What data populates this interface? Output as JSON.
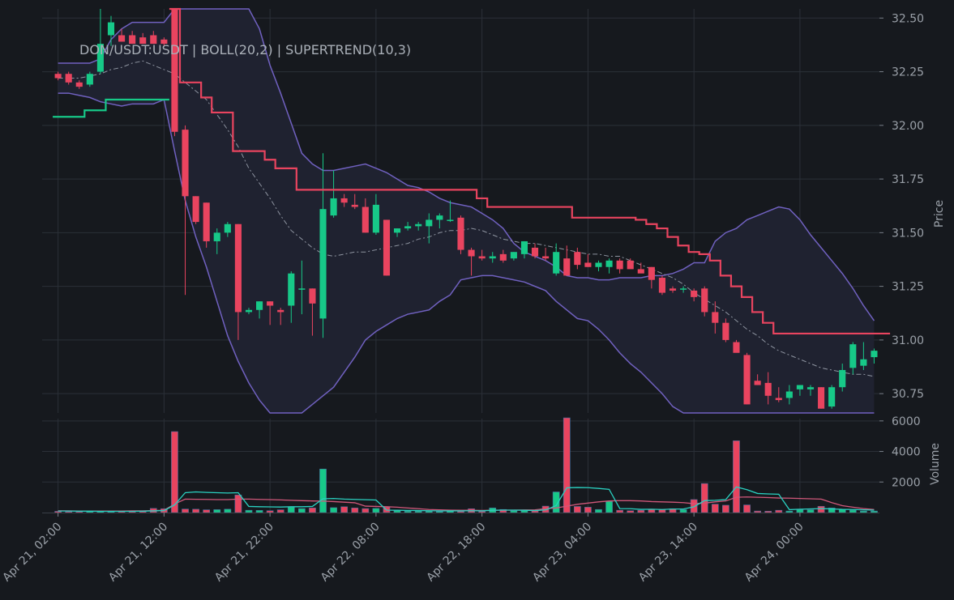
{
  "chart_data": {
    "type": "candlestick",
    "title": "DON/USDT:USDT | BOLL(20,2) | SUPERTREND(10,3)",
    "ylabel": "Price",
    "volume_label": "Volume",
    "price_ylim": [
      30.66,
      32.52
    ],
    "price_ticks": [
      "30.75",
      "31.00",
      "31.25",
      "31.50",
      "31.75",
      "32.00",
      "32.25",
      "32.50"
    ],
    "volume_ylim": [
      0,
      6150
    ],
    "volume_ticks": [
      "2000",
      "4000",
      "6000"
    ],
    "x_range": [
      -1.5,
      77.5
    ],
    "x_ticks": [
      {
        "index": 0,
        "label": "Apr 21, 02:00"
      },
      {
        "index": 10,
        "label": "Apr 21, 12:00"
      },
      {
        "index": 20,
        "label": "Apr 21, 22:00"
      },
      {
        "index": 30,
        "label": "Apr 22, 08:00"
      },
      {
        "index": 40,
        "label": "Apr 22, 18:00"
      },
      {
        "index": 50,
        "label": "Apr 23, 04:00"
      },
      {
        "index": 60,
        "label": "Apr 23, 14:00"
      },
      {
        "index": 70,
        "label": "Apr 24, 00:00"
      }
    ],
    "candles": [
      [
        32.24,
        32.25,
        32.21,
        32.22
      ],
      [
        32.24,
        32.25,
        32.19,
        32.2
      ],
      [
        32.2,
        32.21,
        32.17,
        32.18
      ],
      [
        32.19,
        32.25,
        32.18,
        32.24
      ],
      [
        32.25,
        32.55,
        32.24,
        32.38
      ],
      [
        32.42,
        32.51,
        32.37,
        32.48
      ],
      [
        32.42,
        32.45,
        32.39,
        32.39
      ],
      [
        32.42,
        32.44,
        32.38,
        32.38
      ],
      [
        32.41,
        32.43,
        32.38,
        32.38
      ],
      [
        32.42,
        32.44,
        32.38,
        32.38
      ],
      [
        32.4,
        32.41,
        32.37,
        32.38
      ],
      [
        32.55,
        32.56,
        31.95,
        31.97
      ],
      [
        31.98,
        32.0,
        31.21,
        31.67
      ],
      [
        31.67,
        31.67,
        31.54,
        31.55
      ],
      [
        31.64,
        31.64,
        31.43,
        31.46
      ],
      [
        31.46,
        31.52,
        31.4,
        31.5
      ],
      [
        31.5,
        31.55,
        31.48,
        31.54
      ],
      [
        31.54,
        31.54,
        31.0,
        31.13
      ],
      [
        31.13,
        31.15,
        31.12,
        31.14
      ],
      [
        31.14,
        31.18,
        31.1,
        31.18
      ],
      [
        31.18,
        31.18,
        31.07,
        31.16
      ],
      [
        31.14,
        31.15,
        31.07,
        31.13
      ],
      [
        31.16,
        31.32,
        31.08,
        31.31
      ],
      [
        31.24,
        31.37,
        31.12,
        31.24
      ],
      [
        31.24,
        31.24,
        31.02,
        31.17
      ],
      [
        31.1,
        31.87,
        31.01,
        31.61
      ],
      [
        31.58,
        31.79,
        31.57,
        31.66
      ],
      [
        31.66,
        31.68,
        31.62,
        31.64
      ],
      [
        31.63,
        31.68,
        31.61,
        31.62
      ],
      [
        31.62,
        31.66,
        31.5,
        31.5
      ],
      [
        31.5,
        31.68,
        31.49,
        31.63
      ],
      [
        31.56,
        31.56,
        31.3,
        31.3
      ],
      [
        31.5,
        31.52,
        31.48,
        31.52
      ],
      [
        31.52,
        31.55,
        31.51,
        31.53
      ],
      [
        31.53,
        31.55,
        31.51,
        31.54
      ],
      [
        31.53,
        31.59,
        31.45,
        31.56
      ],
      [
        31.56,
        31.59,
        31.52,
        31.58
      ],
      [
        31.56,
        31.65,
        31.55,
        31.56
      ],
      [
        31.57,
        31.58,
        31.4,
        31.42
      ],
      [
        31.42,
        31.43,
        31.3,
        31.39
      ],
      [
        31.39,
        31.42,
        31.37,
        31.38
      ],
      [
        31.38,
        31.41,
        31.36,
        31.39
      ],
      [
        31.4,
        31.42,
        31.36,
        31.37
      ],
      [
        31.38,
        31.41,
        31.37,
        31.41
      ],
      [
        31.4,
        31.46,
        31.38,
        31.46
      ],
      [
        31.43,
        31.45,
        31.38,
        31.39
      ],
      [
        31.39,
        31.43,
        31.37,
        31.38
      ],
      [
        31.31,
        31.45,
        31.3,
        31.41
      ],
      [
        31.38,
        31.44,
        31.3,
        31.3
      ],
      [
        31.41,
        31.43,
        31.33,
        31.35
      ],
      [
        31.36,
        31.4,
        31.34,
        31.34
      ],
      [
        31.34,
        31.37,
        31.32,
        31.36
      ],
      [
        31.34,
        31.38,
        31.31,
        31.37
      ],
      [
        31.37,
        31.38,
        31.31,
        31.33
      ],
      [
        31.37,
        31.38,
        31.34,
        31.33
      ],
      [
        31.33,
        31.36,
        31.32,
        31.31
      ],
      [
        31.34,
        31.34,
        31.24,
        31.28
      ],
      [
        31.29,
        31.3,
        31.21,
        31.22
      ],
      [
        31.24,
        31.25,
        31.22,
        31.23
      ],
      [
        31.24,
        31.25,
        31.22,
        31.24
      ],
      [
        31.23,
        31.24,
        31.18,
        31.2
      ],
      [
        31.24,
        31.25,
        31.11,
        31.13
      ],
      [
        31.13,
        31.18,
        31.03,
        31.08
      ],
      [
        31.08,
        31.1,
        30.99,
        31.0
      ],
      [
        30.99,
        31.0,
        30.95,
        30.94
      ],
      [
        30.93,
        30.94,
        30.7,
        30.7
      ],
      [
        30.81,
        30.84,
        30.79,
        30.79
      ],
      [
        30.8,
        30.85,
        30.7,
        30.74
      ],
      [
        30.73,
        30.78,
        30.71,
        30.72
      ],
      [
        30.73,
        30.79,
        30.7,
        30.76
      ],
      [
        30.77,
        30.79,
        30.74,
        30.79
      ],
      [
        30.77,
        30.79,
        30.74,
        30.78
      ],
      [
        30.78,
        30.78,
        30.68,
        30.68
      ],
      [
        30.69,
        30.79,
        30.68,
        30.78
      ],
      [
        30.78,
        30.89,
        30.76,
        30.86
      ],
      [
        30.87,
        30.99,
        30.84,
        30.98
      ],
      [
        30.88,
        30.99,
        30.86,
        30.91
      ],
      [
        30.92,
        30.96,
        30.89,
        30.95
      ]
    ],
    "volumes": [
      80,
      60,
      60,
      70,
      70,
      60,
      70,
      80,
      90,
      270,
      250,
      5300,
      230,
      220,
      180,
      190,
      220,
      1150,
      150,
      140,
      120,
      180,
      350,
      260,
      300,
      2850,
      320,
      380,
      300,
      260,
      270,
      350,
      120,
      100,
      90,
      90,
      70,
      110,
      80,
      250,
      80,
      300,
      200,
      120,
      130,
      120,
      420,
      1350,
      6200,
      400,
      350,
      200,
      730,
      150,
      120,
      150,
      200,
      200,
      250,
      190,
      850,
      1900,
      550,
      480,
      4700,
      500,
      100,
      90,
      150,
      100,
      190,
      180,
      410,
      300,
      220,
      160,
      100,
      100
    ],
    "volume_ma_fast": [
      100,
      100,
      90,
      90,
      80,
      80,
      80,
      80,
      90,
      110,
      130,
      500,
      1300,
      1350,
      1320,
      1300,
      1280,
      1300,
      400,
      380,
      370,
      360,
      380,
      380,
      400,
      900,
      920,
      880,
      860,
      840,
      820,
      160,
      150,
      140,
      130,
      120,
      110,
      110,
      110,
      120,
      110,
      150,
      160,
      160,
      150,
      130,
      170,
      460,
      1620,
      1640,
      1630,
      1580,
      1520,
      260,
      250,
      210,
      220,
      200,
      230,
      230,
      380,
      780,
      800,
      850,
      1680,
      1500,
      1250,
      1220,
      1200,
      190,
      220,
      240,
      260,
      240,
      210,
      200,
      180,
      160
    ],
    "volume_ma_slow": [
      120,
      110,
      100,
      100,
      100,
      100,
      100,
      110,
      110,
      130,
      150,
      560,
      880,
      870,
      860,
      850,
      850,
      880,
      880,
      860,
      850,
      830,
      800,
      780,
      760,
      750,
      720,
      680,
      640,
      420,
      400,
      380,
      350,
      300,
      250,
      200,
      180,
      160,
      150,
      150,
      140,
      150,
      160,
      160,
      170,
      180,
      250,
      300,
      420,
      540,
      620,
      700,
      760,
      780,
      780,
      760,
      720,
      700,
      680,
      650,
      580,
      620,
      700,
      760,
      1000,
      1020,
      1000,
      980,
      950,
      940,
      920,
      900,
      880,
      650,
      450,
      350,
      260,
      200
    ],
    "bb_upper": [
      32.29,
      32.29,
      32.29,
      32.29,
      32.31,
      32.4,
      32.45,
      32.48,
      32.48,
      32.48,
      32.48,
      32.63,
      33.0,
      33.0,
      33.0,
      33.0,
      32.9,
      32.75,
      32.6,
      32.45,
      32.28,
      32.15,
      32.01,
      31.87,
      31.82,
      31.79,
      31.79,
      31.8,
      31.81,
      31.82,
      31.8,
      31.78,
      31.75,
      31.72,
      31.71,
      31.69,
      31.66,
      31.64,
      31.63,
      31.62,
      31.59,
      31.56,
      31.52,
      31.45,
      31.41,
      31.39,
      31.37,
      31.34,
      31.3,
      31.29,
      31.29,
      31.28,
      31.28,
      31.29,
      31.29,
      31.29,
      31.3,
      31.3,
      31.31,
      31.33,
      31.36,
      31.36,
      31.46,
      31.5,
      31.52,
      31.56,
      31.58,
      31.6,
      31.62,
      31.61,
      31.56,
      31.49,
      31.43,
      31.37,
      31.31,
      31.24,
      31.16,
      31.09
    ],
    "bb_mid": [
      32.22,
      32.22,
      32.22,
      32.23,
      32.24,
      32.26,
      32.27,
      32.29,
      32.3,
      32.28,
      32.26,
      32.24,
      32.2,
      32.16,
      32.12,
      32.05,
      31.98,
      31.9,
      31.8,
      31.73,
      31.66,
      31.58,
      31.51,
      31.47,
      31.43,
      31.4,
      31.39,
      31.4,
      31.41,
      31.41,
      31.42,
      31.43,
      31.44,
      31.45,
      31.47,
      31.48,
      31.5,
      31.51,
      31.51,
      31.52,
      31.51,
      31.49,
      31.47,
      31.46,
      31.45,
      31.45,
      31.44,
      31.43,
      31.42,
      31.41,
      31.4,
      31.4,
      31.39,
      31.39,
      31.37,
      31.35,
      31.33,
      31.31,
      31.29,
      31.26,
      31.22,
      31.19,
      31.16,
      31.13,
      31.09,
      31.05,
      31.02,
      30.98,
      30.95,
      30.93,
      30.91,
      30.89,
      30.87,
      30.86,
      30.85,
      30.84,
      30.84,
      30.83
    ],
    "bb_lower": [
      32.15,
      32.15,
      32.14,
      32.13,
      32.11,
      32.1,
      32.09,
      32.1,
      32.1,
      32.1,
      32.12,
      31.88,
      31.65,
      31.48,
      31.34,
      31.18,
      31.02,
      30.9,
      30.8,
      30.72,
      30.66,
      30.63,
      30.63,
      30.66,
      30.7,
      30.74,
      30.78,
      30.85,
      30.92,
      31.0,
      31.04,
      31.07,
      31.1,
      31.12,
      31.13,
      31.14,
      31.18,
      31.21,
      31.28,
      31.29,
      31.3,
      31.3,
      31.29,
      31.28,
      31.27,
      31.25,
      31.23,
      31.18,
      31.14,
      31.1,
      31.09,
      31.05,
      31.0,
      30.94,
      30.89,
      30.85,
      30.8,
      30.75,
      30.69,
      30.62,
      30.56,
      30.5,
      30.46,
      30.44,
      30.45,
      30.42,
      30.4,
      30.38,
      30.35,
      30.31,
      30.26,
      30.3,
      30.34,
      30.38,
      30.42,
      30.45,
      30.48,
      30.51
    ],
    "supertrend_up": [
      32.04,
      32.04,
      32.04,
      32.07,
      32.07,
      32.12,
      32.12,
      32.12,
      32.12,
      32.12,
      32.12,
      null
    ],
    "supertrend_down": [
      null,
      null,
      null,
      null,
      null,
      null,
      null,
      null,
      null,
      null,
      null,
      32.55,
      32.2,
      32.2,
      32.13,
      32.06,
      32.06,
      31.88,
      31.88,
      31.88,
      31.84,
      31.8,
      31.8,
      31.7,
      31.7,
      31.7,
      31.7,
      31.7,
      31.7,
      31.7,
      31.7,
      31.7,
      31.7,
      31.7,
      31.7,
      31.7,
      31.7,
      31.7,
      31.7,
      31.7,
      31.66,
      31.62,
      31.62,
      31.62,
      31.62,
      31.62,
      31.62,
      31.62,
      31.62,
      31.57,
      31.57,
      31.57,
      31.57,
      31.57,
      31.57,
      31.56,
      31.54,
      31.52,
      31.48,
      31.44,
      31.41,
      31.4,
      31.37,
      31.3,
      31.25,
      31.2,
      31.13,
      31.08,
      31.03,
      31.03,
      31.03,
      31.03,
      31.03,
      31.03,
      31.03,
      31.03,
      31.03,
      31.03,
      31.03
    ]
  },
  "colors": {
    "background": "#16191e",
    "grid": "#2b3038",
    "up": "#17c988",
    "down": "#e9445f",
    "band_fill": "#1f2230",
    "band_line": "#7061c0",
    "mid_line": "#8e94a0",
    "vol_ma_fast": "#2ad0c0",
    "vol_ma_slow": "#d0587a",
    "axis_text": "#9aa0a8"
  }
}
